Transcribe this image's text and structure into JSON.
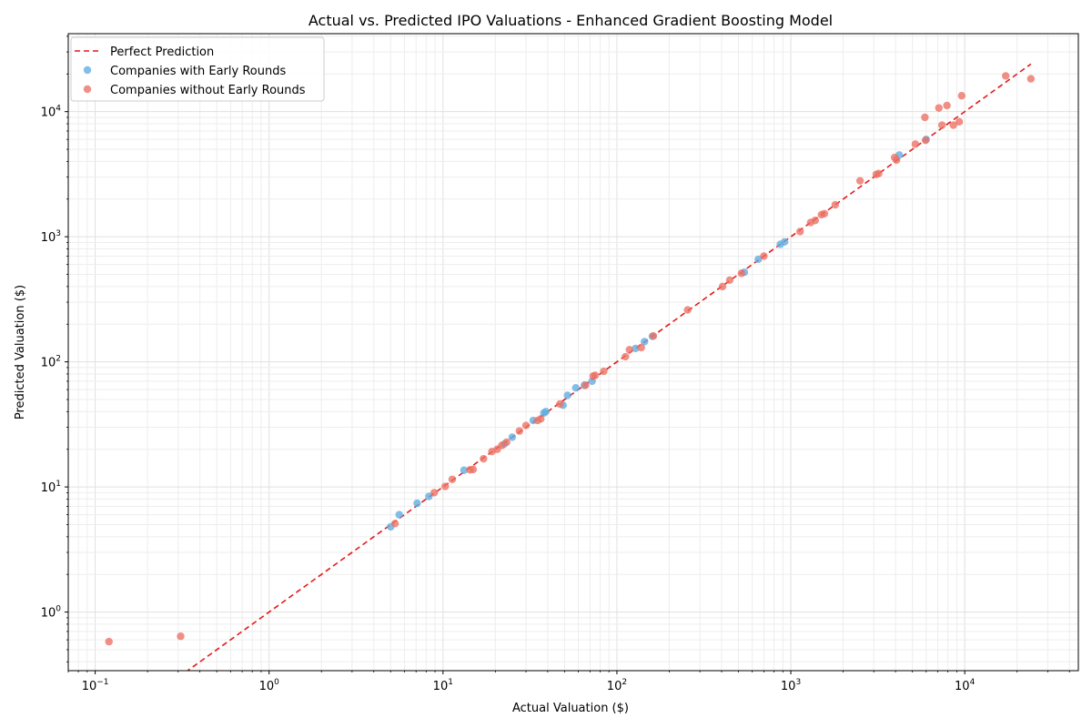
{
  "chart_data": {
    "type": "scatter",
    "title": "Actual vs. Predicted IPO Valuations - Enhanced Gradient Boosting Model",
    "xlabel": "Actual Valuation ($)",
    "ylabel": "Predicted Valuation ($)",
    "xscale": "log",
    "yscale": "log",
    "xlim": [
      0.07,
      45000
    ],
    "ylim": [
      0.34,
      42000
    ],
    "x_ticks": [
      {
        "base": "10",
        "exp": "−1",
        "value": 0.1
      },
      {
        "base": "10",
        "exp": "0",
        "value": 1
      },
      {
        "base": "10",
        "exp": "1",
        "value": 10
      },
      {
        "base": "10",
        "exp": "2",
        "value": 100
      },
      {
        "base": "10",
        "exp": "3",
        "value": 1000
      },
      {
        "base": "10",
        "exp": "4",
        "value": 10000
      }
    ],
    "y_ticks": [
      {
        "base": "10",
        "exp": "0",
        "value": 1
      },
      {
        "base": "10",
        "exp": "1",
        "value": 10
      },
      {
        "base": "10",
        "exp": "2",
        "value": 100
      },
      {
        "base": "10",
        "exp": "3",
        "value": 1000
      },
      {
        "base": "10",
        "exp": "4",
        "value": 10000
      }
    ],
    "grid": true,
    "legend_position": "top-left",
    "legend": [
      {
        "label": "Perfect Prediction",
        "kind": "line",
        "color": "#e41a1c"
      },
      {
        "label": "Companies with Early Rounds",
        "kind": "marker",
        "color": "#5dade2"
      },
      {
        "label": "Companies without Early Rounds",
        "kind": "marker",
        "color": "#ec7063"
      }
    ],
    "reference_line": {
      "name": "Perfect Prediction",
      "x": [
        0.33,
        24000
      ],
      "y": [
        0.33,
        24000
      ],
      "color": "#e41a1c",
      "style": "dashed"
    },
    "series": [
      {
        "name": "Companies with Early Rounds",
        "color": "#5dade2",
        "points": [
          [
            5.0,
            4.8
          ],
          [
            5.6,
            6.0
          ],
          [
            7.1,
            7.4
          ],
          [
            8.3,
            8.4
          ],
          [
            13.2,
            13.6
          ],
          [
            22.5,
            22.0
          ],
          [
            25.0,
            25.0
          ],
          [
            33.0,
            34.0
          ],
          [
            38.0,
            39.0
          ],
          [
            39.0,
            40.0
          ],
          [
            49.0,
            45.0
          ],
          [
            52.0,
            54.0
          ],
          [
            58.0,
            62.0
          ],
          [
            65.0,
            65.0
          ],
          [
            72.0,
            70.0
          ],
          [
            128.0,
            128.0
          ],
          [
            144.0,
            145.0
          ],
          [
            160.0,
            160.0
          ],
          [
            540.0,
            520.0
          ],
          [
            650.0,
            660.0
          ],
          [
            870.0,
            870.0
          ],
          [
            920.0,
            910.0
          ],
          [
            4200.0,
            4500.0
          ],
          [
            6000.0,
            6000.0
          ]
        ]
      },
      {
        "name": "Companies without Early Rounds",
        "color": "#ec7063",
        "points": [
          [
            0.12,
            0.58
          ],
          [
            0.31,
            0.64
          ],
          [
            5.3,
            5.1
          ],
          [
            8.9,
            9.0
          ],
          [
            10.3,
            10.1
          ],
          [
            11.3,
            11.5
          ],
          [
            14.3,
            13.7
          ],
          [
            14.9,
            13.8
          ],
          [
            17.1,
            16.8
          ],
          [
            19.1,
            19.2
          ],
          [
            20.5,
            20.0
          ],
          [
            21.8,
            21.5
          ],
          [
            23.2,
            22.8
          ],
          [
            27.5,
            28.0
          ],
          [
            30.0,
            31.0
          ],
          [
            35.0,
            34.0
          ],
          [
            36.5,
            35.0
          ],
          [
            47.0,
            46.0
          ],
          [
            66.0,
            65.0
          ],
          [
            73.0,
            77.0
          ],
          [
            75.0,
            78.0
          ],
          [
            84.0,
            84.0
          ],
          [
            112.0,
            110.0
          ],
          [
            118.0,
            125.0
          ],
          [
            138.0,
            130.0
          ],
          [
            162.0,
            161.0
          ],
          [
            255.0,
            260.0
          ],
          [
            405.0,
            400.0
          ],
          [
            445.0,
            450.0
          ],
          [
            520.0,
            510.0
          ],
          [
            700.0,
            700.0
          ],
          [
            1130.0,
            1100.0
          ],
          [
            1300.0,
            1300.0
          ],
          [
            1380.0,
            1350.0
          ],
          [
            1500.0,
            1500.0
          ],
          [
            1560.0,
            1530.0
          ],
          [
            1800.0,
            1800.0
          ],
          [
            2500.0,
            2800.0
          ],
          [
            3100.0,
            3150.0
          ],
          [
            3200.0,
            3200.0
          ],
          [
            3950.0,
            4300.0
          ],
          [
            4050.0,
            4100.0
          ],
          [
            5200.0,
            5500.0
          ],
          [
            5900.0,
            9000.0
          ],
          [
            5950.0,
            5900.0
          ],
          [
            7100.0,
            10700.0
          ],
          [
            7400.0,
            7800.0
          ],
          [
            7900.0,
            11200.0
          ],
          [
            8600.0,
            7800.0
          ],
          [
            9300.0,
            8300.0
          ],
          [
            9600.0,
            13400.0
          ],
          [
            17200.0,
            19300.0
          ],
          [
            24000.0,
            18300.0
          ]
        ]
      }
    ]
  }
}
